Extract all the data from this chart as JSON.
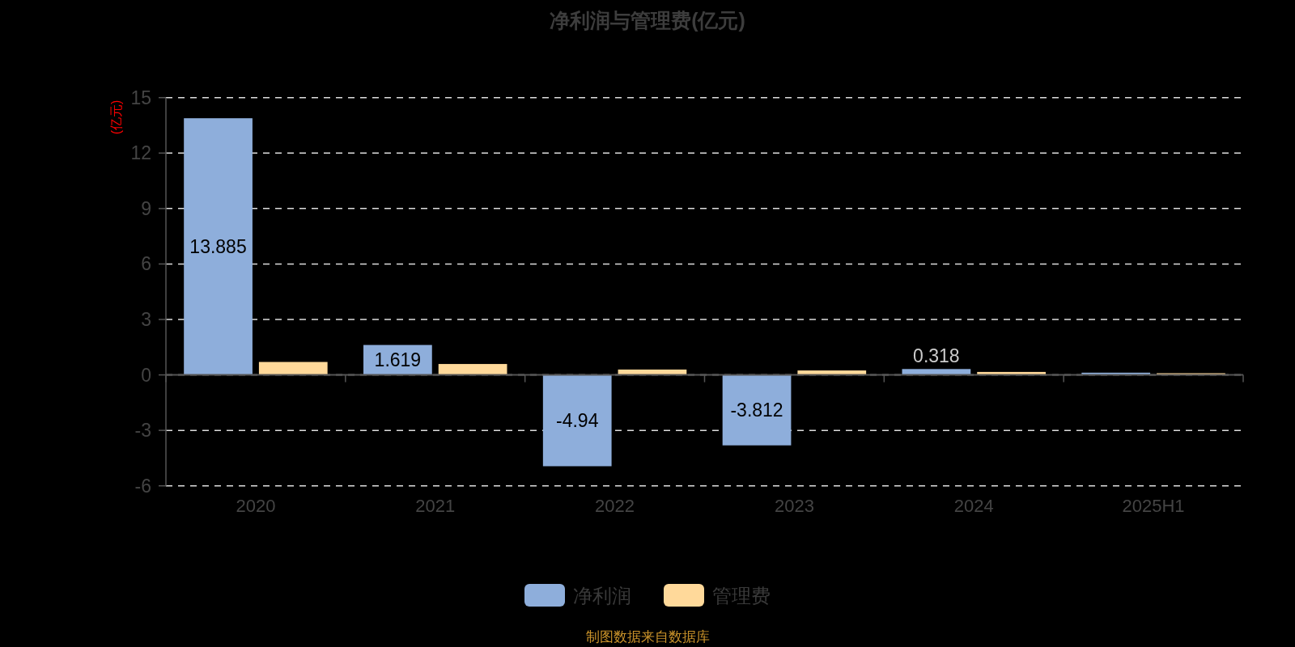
{
  "chart_data": {
    "type": "bar",
    "title": "净利润与管理费(亿元)",
    "ylabel": "(亿元)",
    "categories": [
      "2020",
      "2021",
      "2022",
      "2023",
      "2024",
      "2025H1"
    ],
    "series": [
      {
        "name": "净利润",
        "color": "#8eaedb",
        "values": [
          13.885,
          1.619,
          -4.94,
          -3.812,
          0.318,
          0.12
        ],
        "value_labels": [
          "13.885",
          "1.619",
          "-4.94",
          "-3.812",
          "0.318",
          null
        ]
      },
      {
        "name": "管理费",
        "color": "#ffd99a",
        "values": [
          0.7,
          0.59,
          0.29,
          0.24,
          0.16,
          0.09
        ]
      }
    ],
    "ylim": [
      -6,
      15
    ],
    "yticks": [
      -6,
      -3,
      0,
      3,
      6,
      9,
      12,
      15
    ],
    "grid": "y",
    "legend": "bottom",
    "annotations": [
      "制图数据来自数据库"
    ]
  }
}
